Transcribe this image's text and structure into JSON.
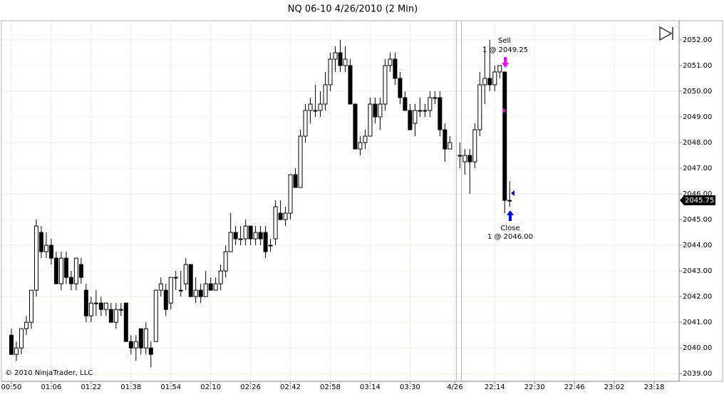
{
  "chart_data": {
    "type": "candlestick",
    "title": "NQ 06-10  4/26/2010 (2 Min)",
    "copyright": "© 2010 NinjaTrader, LLC",
    "xlim": [
      -2,
      134
    ],
    "xticks": [
      {
        "value": 0,
        "label": "00:50"
      },
      {
        "value": 8,
        "label": "01:06"
      },
      {
        "value": 16,
        "label": "01:22"
      },
      {
        "value": 24,
        "label": "01:38"
      },
      {
        "value": 32,
        "label": "01:54"
      },
      {
        "value": 40,
        "label": "02:10"
      },
      {
        "value": 48,
        "label": "02:26"
      },
      {
        "value": 56,
        "label": "02:42"
      },
      {
        "value": 64,
        "label": "02:58"
      },
      {
        "value": 72,
        "label": "03:14"
      },
      {
        "value": 80,
        "label": "03:30"
      },
      {
        "value": 89,
        "label": "4/26"
      },
      {
        "value": 97,
        "label": "22:14"
      },
      {
        "value": 105,
        "label": "22:30"
      },
      {
        "value": 113,
        "label": "22:46"
      },
      {
        "value": 121,
        "label": "23:02"
      },
      {
        "value": 129,
        "label": "23:18"
      }
    ],
    "ylim": [
      2038.7,
      2052.72
    ],
    "yticks": [
      {
        "value": 2039,
        "label": "2039.00"
      },
      {
        "value": 2040,
        "label": "2040.00"
      },
      {
        "value": 2041,
        "label": "2041.00"
      },
      {
        "value": 2042,
        "label": "2042.00"
      },
      {
        "value": 2043,
        "label": "2043.00"
      },
      {
        "value": 2044,
        "label": "2044.00"
      },
      {
        "value": 2045,
        "label": "2045.00"
      },
      {
        "value": 2046,
        "label": "2046.00"
      },
      {
        "value": 2047,
        "label": "2047.00"
      },
      {
        "value": 2048,
        "label": "2048.00"
      },
      {
        "value": 2049,
        "label": "2049.00"
      },
      {
        "value": 2050,
        "label": "2050.00"
      },
      {
        "value": 2051,
        "label": "2051.00"
      },
      {
        "value": 2052,
        "label": "2052.00"
      }
    ],
    "grid": true,
    "up_color": "#ffffff",
    "down_color": "#000000",
    "last_price": 2045.75,
    "annotations": [
      {
        "text": "Sell",
        "detail": "1 @ 2049.25"
      },
      {
        "text": "Close",
        "detail": "1 @ 2046.00"
      }
    ],
    "open": [
      2040.5,
      2039.75,
      2040,
      2040.75,
      2041,
      2042.25,
      2044.5,
      2043.75,
      2044,
      2043.5,
      2042.5,
      2043.5,
      2042.75,
      2042.5,
      2043.25,
      2042.25,
      2041.25,
      2041.75,
      2041.75,
      2041.5,
      2041.5,
      2041,
      2041.5,
      2041.75,
      2040.25,
      2040,
      2040.75,
      2040,
      2040,
      2040.25,
      2042.25,
      2042.25,
      2041.75,
      2042.75,
      2042.25,
      2042.5,
      2043.25,
      2042,
      2042.25,
      2042,
      2042.5,
      2042.25,
      2042.5,
      2043,
      2043.75,
      2044.5,
      2044.25,
      2044.25,
      2044.75,
      2044.25,
      2044.5,
      2044.5,
      2044,
      2044.25,
      2045.25,
      2045,
      2045.25,
      2046.75,
      2046.25,
      2048.25,
      2049.25,
      2049.25,
      2049.25,
      2049.5,
      2050.25,
      2051.25,
      2051.5,
      2051,
      2051,
      2049.5,
      2047.75,
      2048,
      2048.25,
      2049.5,
      2049,
      2049.5,
      2051,
      2051.25,
      2050.5,
      2049.75,
      2049.25,
      2048.75,
      2049.25,
      2049.25,
      2049.25,
      2049.75,
      2049.75,
      2048.5,
      2047.75,
      null,
      2047.5,
      2047.25,
      2047.5,
      2047.25,
      2048.5,
      2050.25,
      2050.5,
      2050.25,
      2050.75,
      2050.75,
      2045.75
    ],
    "high": [
      2040.75,
      2040.25,
      2040.75,
      2041.25,
      2042.25,
      2045,
      2044.75,
      2044.5,
      2044.25,
      2043.75,
      2043.75,
      2043.75,
      2043,
      2043.5,
      2043.5,
      2042.5,
      2042,
      2042.25,
      2042,
      2041.75,
      2041.75,
      2041.75,
      2041.75,
      2041.75,
      2040.5,
      2040.5,
      2040.75,
      2041,
      2040.25,
      2042.25,
      2042.75,
      2042.5,
      2042.75,
      2043,
      2043,
      2043.5,
      2043.25,
      2042.75,
      2042.5,
      2043,
      2042.75,
      2042.75,
      2043.25,
      2044,
      2045.25,
      2044.75,
      2044.75,
      2045,
      2044.75,
      2044.75,
      2044.75,
      2044.75,
      2044.25,
      2045.75,
      2045.75,
      2045.5,
      2046.75,
      2047,
      2048.5,
      2049.5,
      2049.75,
      2050.25,
      2050,
      2050.75,
      2051.5,
      2051.75,
      2052,
      2051.75,
      2051.25,
      2049.5,
      2048.25,
      2048.5,
      2049.75,
      2049.75,
      2049.75,
      2051.25,
      2051.5,
      2051.5,
      2050.75,
      2050,
      2049.5,
      2049.5,
      2049.75,
      2049.5,
      2050,
      2050,
      2050,
      2048.75,
      2048.25,
      null,
      2048,
      2047.75,
      2047.75,
      2048.75,
      2050.75,
      2051.75,
      2052,
      2051,
      2051,
      2050.75,
      2046.5
    ],
    "low": [
      2039.75,
      2039.5,
      2039.75,
      2040.5,
      2040.75,
      2042,
      2043.5,
      2043.5,
      2043.25,
      2042.5,
      2042.25,
      2042.5,
      2042.25,
      2042.25,
      2042.5,
      2041,
      2041,
      2041.25,
      2041.25,
      2041.25,
      2041,
      2040.75,
      2041.25,
      2040.25,
      2039.75,
      2039.5,
      2039.75,
      2039.75,
      2039.25,
      2040.25,
      2042,
      2041.25,
      2041.5,
      2042.25,
      2042,
      2042.25,
      2042,
      2041.75,
      2041.75,
      2042,
      2042.25,
      2042.25,
      2042.25,
      2042.75,
      2043.75,
      2044,
      2044,
      2044,
      2044,
      2044,
      2044,
      2043.5,
      2043.75,
      2044,
      2045,
      2044.75,
      2045,
      2046.25,
      2046.25,
      2048,
      2048.75,
      2049,
      2049,
      2049.25,
      2050,
      2050.75,
      2050.75,
      2050.75,
      2049.5,
      2047.75,
      2047.5,
      2047.75,
      2048.25,
      2048.75,
      2048.5,
      2049.25,
      2050.75,
      2050.25,
      2049.5,
      2049.25,
      2048.5,
      2048.25,
      2049,
      2049,
      2049,
      2049.5,
      2048.25,
      2047.25,
      2047.75,
      null,
      2047,
      2046.75,
      2046,
      2047,
      2048.25,
      2049.5,
      2050,
      2050,
      2050.5,
      2045.25,
      2045.5
    ],
    "close": [
      2039.75,
      2040,
      2040.75,
      2041,
      2042.25,
      2044.75,
      2043.75,
      2044,
      2043.5,
      2042.5,
      2043.5,
      2042.75,
      2042.5,
      2043.5,
      2042.75,
      2041.25,
      2041.75,
      2041.75,
      2041.5,
      2041.75,
      2041,
      2041.5,
      2041.5,
      2040.25,
      2040,
      2040.25,
      2040,
      2040.75,
      2039.75,
      2042.25,
      2042.5,
      2041.5,
      2042.75,
      2042.75,
      2042.25,
      2043.25,
      2042,
      2042.25,
      2042,
      2042.5,
      2042.25,
      2042.5,
      2043,
      2043.75,
      2044.5,
      2044.25,
      2044.25,
      2044.75,
      2044.25,
      2044.5,
      2044.25,
      2043.75,
      2044,
      2045.5,
      2045,
      2045.25,
      2046.75,
      2046.25,
      2048.25,
      2049.25,
      2049.5,
      2049.25,
      2049.5,
      2050.25,
      2051.25,
      2051.5,
      2051,
      2051.25,
      2049.5,
      2047.75,
      2048,
      2048.25,
      2049.5,
      2049,
      2049.5,
      2051,
      2051.25,
      2050.5,
      2049.75,
      2049.25,
      2048.5,
      2049.25,
      2049.25,
      2049.25,
      2049.75,
      2049.75,
      2048.5,
      2047.75,
      2048,
      null,
      2047.5,
      2047.5,
      2047.25,
      2048.5,
      2050.25,
      2050.5,
      2050.25,
      2050.75,
      2051,
      2045.75,
      2045.75
    ]
  }
}
